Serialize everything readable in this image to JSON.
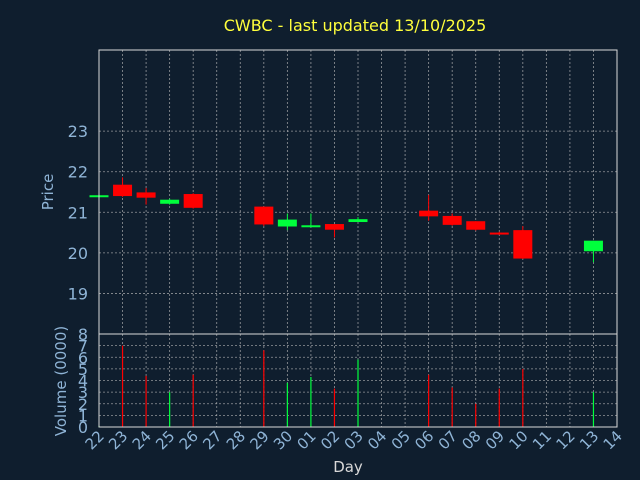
{
  "chart_data": {
    "type": "candlestick",
    "title": "CWBC - last updated 13/10/2025",
    "xlabel": "Day",
    "price_panel": {
      "ylabel": "Price",
      "ylim": [
        18.0,
        25.0
      ],
      "yticks": [
        19,
        20,
        21,
        22,
        23
      ]
    },
    "volume_panel": {
      "ylabel": "Volume (0000)",
      "ylim": [
        0,
        8
      ],
      "yticks": [
        0,
        1,
        2,
        3,
        4,
        5,
        6,
        7,
        8
      ]
    },
    "x_ticks": [
      "22",
      "23",
      "24",
      "25",
      "26",
      "27",
      "28",
      "29",
      "30",
      "01",
      "02",
      "03",
      "04",
      "05",
      "06",
      "07",
      "08",
      "09",
      "10",
      "11",
      "12",
      "13",
      "14"
    ],
    "grid": true,
    "colors": {
      "background": "#0f1e2e",
      "axis": "#d9d9d9",
      "label": "#8fb4d6",
      "title": "#ffff3c",
      "up": "#00ff3c",
      "down": "#ff0000"
    },
    "candles": [
      {
        "day": "22",
        "open": 21.4,
        "high": 21.42,
        "low": 21.4,
        "close": 21.42
      },
      {
        "day": "23",
        "open": 21.68,
        "high": 21.86,
        "low": 21.38,
        "close": 21.4
      },
      {
        "day": "24",
        "open": 21.49,
        "high": 21.6,
        "low": 21.19,
        "close": 21.36
      },
      {
        "day": "25",
        "open": 21.21,
        "high": 21.33,
        "low": 21.19,
        "close": 21.31
      },
      {
        "day": "26",
        "open": 21.45,
        "high": 21.47,
        "low": 21.09,
        "close": 21.11
      },
      {
        "day": "29",
        "open": 21.14,
        "high": 21.14,
        "low": 20.66,
        "close": 20.7
      },
      {
        "day": "30",
        "open": 20.65,
        "high": 20.97,
        "low": 20.56,
        "close": 20.82
      },
      {
        "day": "01",
        "open": 20.66,
        "high": 20.97,
        "low": 20.66,
        "close": 20.68
      },
      {
        "day": "02",
        "open": 20.71,
        "high": 20.71,
        "low": 20.38,
        "close": 20.57
      },
      {
        "day": "03",
        "open": 20.76,
        "high": 20.88,
        "low": 20.76,
        "close": 20.83
      },
      {
        "day": "06",
        "open": 21.04,
        "high": 21.43,
        "low": 20.79,
        "close": 20.9
      },
      {
        "day": "07",
        "open": 20.91,
        "high": 20.97,
        "low": 20.67,
        "close": 20.69
      },
      {
        "day": "08",
        "open": 20.78,
        "high": 20.78,
        "low": 20.55,
        "close": 20.57
      },
      {
        "day": "09",
        "open": 20.5,
        "high": 20.52,
        "low": 20.44,
        "close": 20.48
      },
      {
        "day": "10",
        "open": 20.56,
        "high": 20.66,
        "low": 19.85,
        "close": 19.86
      },
      {
        "day": "13",
        "open": 20.04,
        "high": 20.3,
        "low": 19.77,
        "close": 20.3
      }
    ],
    "volume": [
      {
        "day": "22",
        "value": 0.1,
        "dir": "up"
      },
      {
        "day": "23",
        "value": 7.0,
        "dir": "down"
      },
      {
        "day": "24",
        "value": 4.4,
        "dir": "down"
      },
      {
        "day": "25",
        "value": 3.0,
        "dir": "up"
      },
      {
        "day": "26",
        "value": 4.5,
        "dir": "down"
      },
      {
        "day": "29",
        "value": 6.6,
        "dir": "down"
      },
      {
        "day": "30",
        "value": 3.8,
        "dir": "up"
      },
      {
        "day": "01",
        "value": 4.3,
        "dir": "up"
      },
      {
        "day": "02",
        "value": 3.3,
        "dir": "down"
      },
      {
        "day": "03",
        "value": 5.8,
        "dir": "up"
      },
      {
        "day": "06",
        "value": 4.5,
        "dir": "down"
      },
      {
        "day": "07",
        "value": 3.4,
        "dir": "down"
      },
      {
        "day": "08",
        "value": 2.0,
        "dir": "down"
      },
      {
        "day": "09",
        "value": 3.3,
        "dir": "down"
      },
      {
        "day": "10",
        "value": 5.0,
        "dir": "down"
      },
      {
        "day": "13",
        "value": 3.0,
        "dir": "up"
      }
    ]
  }
}
